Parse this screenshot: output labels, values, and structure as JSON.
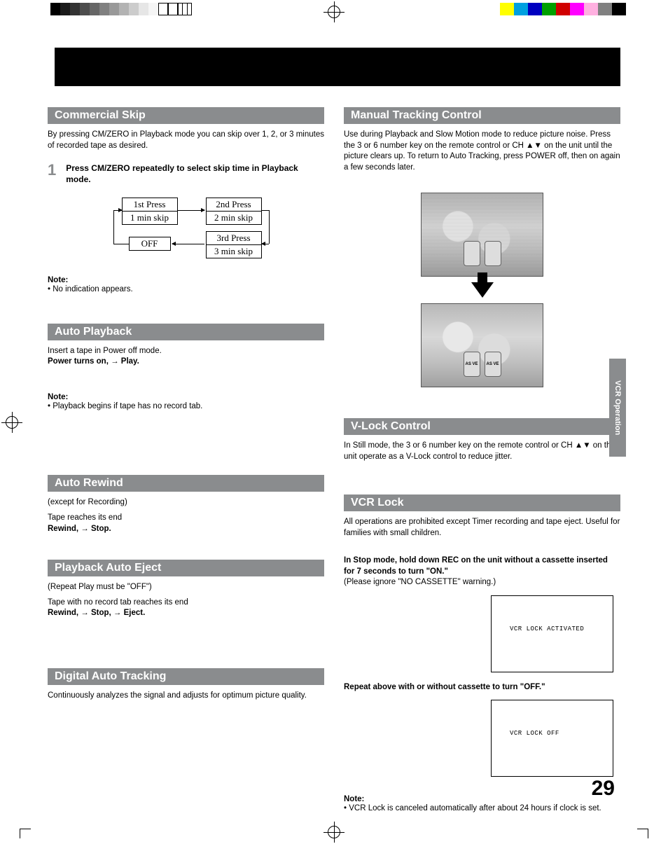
{
  "printer_marks": {
    "gray_shades": [
      "#000000",
      "#1a1a1a",
      "#333333",
      "#4d4d4d",
      "#666666",
      "#808080",
      "#999999",
      "#b3b3b3",
      "#cccccc",
      "#e6e6e6",
      "#f5f5f5",
      "#ffffff",
      "#ffffff",
      "#ffffff"
    ],
    "color_swatches": [
      "#ffff00",
      "#00a0e0",
      "#0000c0",
      "#00a000",
      "#d00000",
      "#ff00ff",
      "#ffb0e0",
      "#808080",
      "#000000"
    ]
  },
  "side_tab": "VCR Operation",
  "page_number": "29",
  "left": {
    "commercial_skip": {
      "title": "Commercial Skip",
      "intro": "By pressing CM/ZERO in Playback mode you can skip over 1, 2, or 3 minutes of recorded tape as desired.",
      "step_num": "1",
      "step_text": "Press CM/ZERO repeatedly to select skip time in Playback mode.",
      "diagram": {
        "box1_l1": "1st Press",
        "box1_l2": "1 min skip",
        "box2_l1": "2nd Press",
        "box2_l2": "2 min skip",
        "box3_l1": "3rd Press",
        "box3_l2": "3 min skip",
        "box4": "OFF"
      },
      "note_label": "Note:",
      "note1": "•  No indication appears."
    },
    "auto_playback": {
      "title": "Auto Playback",
      "line1": "Insert a tape in Power off mode.",
      "line2": "Power turns on, → Play.",
      "note_label": "Note:",
      "note1": "•  Playback begins if tape has no record tab."
    },
    "auto_rewind": {
      "title": "Auto Rewind",
      "line1": "(except for Recording)",
      "line2": "Tape reaches its end",
      "line3": "Rewind, → Stop."
    },
    "playback_auto_eject": {
      "title": "Playback Auto Eject",
      "line1": "(Repeat Play must be \"OFF\")",
      "line2": "Tape with no record tab reaches its end",
      "line3": "Rewind, → Stop, → Eject."
    },
    "digital_auto_tracking": {
      "title": "Digital Auto Tracking",
      "text": "Continuously analyzes the signal and adjusts for optimum picture quality."
    }
  },
  "right": {
    "manual_tracking": {
      "title": "Manual Tracking Control",
      "text": "Use during Playback and Slow Motion mode to reduce picture noise. Press the 3 or 6 number key on the remote control or CH ▲▼ on the unit until the picture clears up. To return to Auto Tracking, press POWER off, then on again a few seconds later.",
      "can_label": "AS VE"
    },
    "vlock": {
      "title": "V-Lock Control",
      "text": "In Still mode, the 3 or 6 number key on the remote control or CH ▲▼ on the unit operate as a V-Lock control to reduce jitter."
    },
    "vcr_lock": {
      "title": "VCR Lock",
      "intro": "All operations are prohibited except Timer recording and tape eject. Useful for families with small children.",
      "instr1a": "In Stop mode, hold down REC on the unit without a cassette inserted for 7 seconds to turn \"ON.\"",
      "instr1b": "(Please ignore \"NO CASSETTE\" warning.)",
      "screen1": "VCR LOCK ACTIVATED",
      "instr2": "Repeat above with or without cassette to turn \"OFF.\"",
      "screen2": "VCR LOCK OFF",
      "note_label": "Note:",
      "note1": "•  VCR Lock is canceled automatically after about 24 hours if clock is set."
    }
  }
}
